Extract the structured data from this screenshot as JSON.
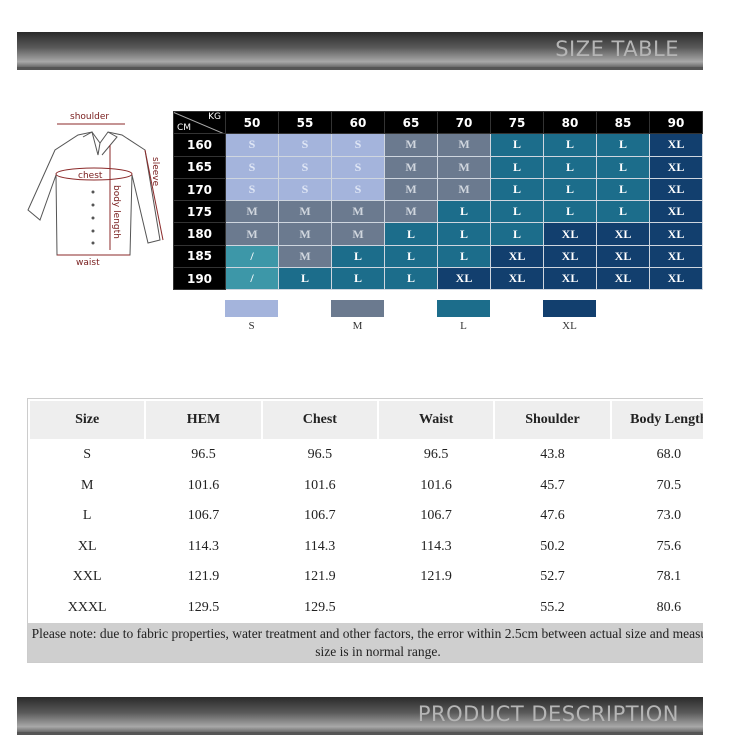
{
  "banners": {
    "top": "SIZE TABLE",
    "bottom": "PRODUCT DESCRIPTION"
  },
  "diagram": {
    "labels": {
      "shoulder": "shoulder",
      "chest": "chest",
      "sleeve": "sleeve",
      "body_length": "body length",
      "waist": "waist"
    }
  },
  "grid": {
    "corner": {
      "kg": "KG",
      "cm": "CM"
    },
    "weights": [
      "50",
      "55",
      "60",
      "65",
      "70",
      "75",
      "80",
      "85",
      "90"
    ],
    "rows": [
      {
        "height": "160",
        "sizes": [
          "S",
          "S",
          "S",
          "M",
          "M",
          "L",
          "L",
          "L",
          "XL"
        ]
      },
      {
        "height": "165",
        "sizes": [
          "S",
          "S",
          "S",
          "M",
          "M",
          "L",
          "L",
          "L",
          "XL"
        ]
      },
      {
        "height": "170",
        "sizes": [
          "S",
          "S",
          "S",
          "M",
          "M",
          "L",
          "L",
          "L",
          "XL"
        ]
      },
      {
        "height": "175",
        "sizes": [
          "M",
          "M",
          "M",
          "M",
          "L",
          "L",
          "L",
          "L",
          "XL"
        ]
      },
      {
        "height": "180",
        "sizes": [
          "M",
          "M",
          "M",
          "L",
          "L",
          "L",
          "XL",
          "XL",
          "XL"
        ]
      },
      {
        "height": "185",
        "sizes": [
          "/",
          "M",
          "L",
          "L",
          "L",
          "XL",
          "XL",
          "XL",
          "XL"
        ]
      },
      {
        "height": "190",
        "sizes": [
          "/",
          "L",
          "L",
          "L",
          "XL",
          "XL",
          "XL",
          "XL",
          "XL"
        ]
      }
    ],
    "colors": {
      "S": "#a4b4dc",
      "M": "#6b7a8f",
      "L": "#1c6d8b",
      "XL": "#123f6e",
      "/": "#3d97a8"
    },
    "legend": [
      "S",
      "M",
      "L",
      "XL"
    ]
  },
  "size_table": {
    "headers": [
      "Size",
      "HEM",
      "Chest",
      "Waist",
      "Shoulder",
      "Body Length"
    ],
    "rows": [
      [
        "S",
        "96.5",
        "96.5",
        "96.5",
        "43.8",
        "68.0"
      ],
      [
        "M",
        "101.6",
        "101.6",
        "101.6",
        "45.7",
        "70.5"
      ],
      [
        "L",
        "106.7",
        "106.7",
        "106.7",
        "47.6",
        "73.0"
      ],
      [
        "XL",
        "114.3",
        "114.3",
        "114.3",
        "50.2",
        "75.6"
      ],
      [
        "XXL",
        "121.9",
        "121.9",
        "121.9",
        "52.7",
        "78.1"
      ],
      [
        "XXXL",
        "129.5",
        "129.5",
        "",
        "55.2",
        "80.6"
      ]
    ],
    "note": "Please note: due to fabric properties, water treatment and other factors, the error within 2.5cm between actual size and measured size is in normal range."
  }
}
